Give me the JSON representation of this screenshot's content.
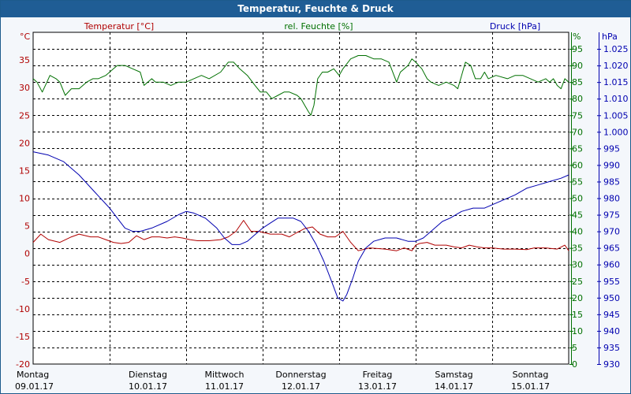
{
  "window": {
    "title": "Temperatur, Feuchte & Druck"
  },
  "colors": {
    "temperature": "#b00000",
    "humidity": "#007000",
    "pressure": "#0000b0",
    "title_bar": "#1f5d95",
    "grid": "#000000"
  },
  "chart_data": {
    "type": "line",
    "title": "Temperatur, Feuchte & Druck",
    "grid": true,
    "legend": "top",
    "axes": {
      "temperature": {
        "side": "left",
        "label": "Temperatur [°C]",
        "unit_label": "°C",
        "range": [
          -20,
          40
        ],
        "ticks": [
          -20,
          -15,
          -10,
          -5,
          0,
          5,
          10,
          15,
          20,
          25,
          30,
          35
        ],
        "tick_labels": [
          "-20",
          "-15",
          "-10",
          "-5",
          "0",
          "5",
          "10",
          "15",
          "20",
          "25",
          "30",
          "35"
        ]
      },
      "humidity": {
        "side": "right",
        "label": "rel. Feuchte [%]",
        "unit_label": "%",
        "range": [
          0,
          100
        ],
        "ticks": [
          0,
          5,
          10,
          15,
          20,
          25,
          30,
          35,
          40,
          45,
          50,
          55,
          60,
          65,
          70,
          75,
          80,
          85,
          90,
          95
        ],
        "tick_labels": [
          "0",
          "5",
          "10",
          "15",
          "20",
          "25",
          "30",
          "35",
          "40",
          "45",
          "50",
          "55",
          "60",
          "65",
          "70",
          "75",
          "80",
          "85",
          "90",
          "95"
        ]
      },
      "pressure": {
        "side": "right",
        "label": "Druck [hPa]",
        "unit_label": "hPa",
        "range": [
          930,
          1030
        ],
        "ticks": [
          930,
          935,
          940,
          945,
          950,
          955,
          960,
          965,
          970,
          975,
          980,
          985,
          990,
          995,
          1000,
          1005,
          1010,
          1015,
          1020,
          1025
        ],
        "tick_labels": [
          "930",
          "935",
          "940",
          "945",
          "950",
          "955",
          "960",
          "965",
          "970",
          "975",
          "980",
          "985",
          "990",
          "995",
          "1.000",
          "1.005",
          "1.010",
          "1.015",
          "1.020",
          "1.025"
        ]
      }
    },
    "x": {
      "unit": "day",
      "range": [
        0,
        7
      ],
      "days": [
        {
          "pos": 0,
          "name": "Montag",
          "date": "09.01.17"
        },
        {
          "pos": 1,
          "name": "Dienstag",
          "date": "10.01.17"
        },
        {
          "pos": 2,
          "name": "Mittwoch",
          "date": "11.01.17"
        },
        {
          "pos": 3,
          "name": "Donnerstag",
          "date": "12.01.17"
        },
        {
          "pos": 4,
          "name": "Freitag",
          "date": "13.01.17"
        },
        {
          "pos": 5,
          "name": "Samstag",
          "date": "14.01.17"
        },
        {
          "pos": 6,
          "name": "Sonntag",
          "date": "15.01.17"
        }
      ]
    },
    "series": [
      {
        "name": "Temperatur [°C]",
        "axis": "temperature",
        "color": "#b00000",
        "points": [
          [
            0,
            2.0
          ],
          [
            0.1,
            3.5
          ],
          [
            0.2,
            2.5
          ],
          [
            0.35,
            2.0
          ],
          [
            0.5,
            3.0
          ],
          [
            0.6,
            3.5
          ],
          [
            0.75,
            3.0
          ],
          [
            0.85,
            3.0
          ],
          [
            0.95,
            2.5
          ],
          [
            1.05,
            2.0
          ],
          [
            1.15,
            1.8
          ],
          [
            1.25,
            2.0
          ],
          [
            1.35,
            3.2
          ],
          [
            1.45,
            2.5
          ],
          [
            1.55,
            3.0
          ],
          [
            1.65,
            3.0
          ],
          [
            1.75,
            2.8
          ],
          [
            1.85,
            3.0
          ],
          [
            1.95,
            2.8
          ],
          [
            2.05,
            2.5
          ],
          [
            2.15,
            2.3
          ],
          [
            2.3,
            2.3
          ],
          [
            2.45,
            2.5
          ],
          [
            2.55,
            3.0
          ],
          [
            2.65,
            4.0
          ],
          [
            2.75,
            6.0
          ],
          [
            2.85,
            4.0
          ],
          [
            2.95,
            4.0
          ],
          [
            3.1,
            3.5
          ],
          [
            3.25,
            3.5
          ],
          [
            3.35,
            3.0
          ],
          [
            3.45,
            3.8
          ],
          [
            3.55,
            4.5
          ],
          [
            3.65,
            4.8
          ],
          [
            3.75,
            3.5
          ],
          [
            3.85,
            3.0
          ],
          [
            3.95,
            3.0
          ],
          [
            4.05,
            4.0
          ],
          [
            4.15,
            2.0
          ],
          [
            4.25,
            0.5
          ],
          [
            4.4,
            1.0
          ],
          [
            4.6,
            0.8
          ],
          [
            4.75,
            0.5
          ],
          [
            4.85,
            1.0
          ],
          [
            4.95,
            0.5
          ],
          [
            5.0,
            1.5
          ],
          [
            5.05,
            1.8
          ],
          [
            5.15,
            2.0
          ],
          [
            5.25,
            1.5
          ],
          [
            5.4,
            1.5
          ],
          [
            5.5,
            1.2
          ],
          [
            5.6,
            1.0
          ],
          [
            5.7,
            1.5
          ],
          [
            5.8,
            1.2
          ],
          [
            5.9,
            1.0
          ],
          [
            6.0,
            1.0
          ],
          [
            6.15,
            0.8
          ],
          [
            6.3,
            0.8
          ],
          [
            6.45,
            0.7
          ],
          [
            6.55,
            1.0
          ],
          [
            6.7,
            1.0
          ],
          [
            6.85,
            0.8
          ],
          [
            6.95,
            1.5
          ],
          [
            7.0,
            0.5
          ]
        ]
      },
      {
        "name": "rel. Feuchte [%]",
        "axis": "humidity",
        "color": "#007000",
        "points": [
          [
            0,
            86
          ],
          [
            0.05,
            85
          ],
          [
            0.12,
            82
          ],
          [
            0.18,
            85
          ],
          [
            0.22,
            87
          ],
          [
            0.3,
            86
          ],
          [
            0.35,
            85
          ],
          [
            0.42,
            81
          ],
          [
            0.5,
            83
          ],
          [
            0.6,
            83
          ],
          [
            0.7,
            85
          ],
          [
            0.78,
            86
          ],
          [
            0.85,
            86
          ],
          [
            0.95,
            87
          ],
          [
            1.0,
            88
          ],
          [
            1.05,
            89
          ],
          [
            1.1,
            90
          ],
          [
            1.2,
            90
          ],
          [
            1.3,
            89
          ],
          [
            1.4,
            88
          ],
          [
            1.45,
            84
          ],
          [
            1.55,
            86
          ],
          [
            1.6,
            85
          ],
          [
            1.7,
            85
          ],
          [
            1.8,
            84
          ],
          [
            1.9,
            85
          ],
          [
            2.0,
            85
          ],
          [
            2.1,
            86
          ],
          [
            2.2,
            87
          ],
          [
            2.3,
            86
          ],
          [
            2.45,
            88
          ],
          [
            2.55,
            91
          ],
          [
            2.62,
            91
          ],
          [
            2.7,
            89
          ],
          [
            2.8,
            87
          ],
          [
            2.9,
            84
          ],
          [
            2.97,
            82
          ],
          [
            3.05,
            82
          ],
          [
            3.12,
            80
          ],
          [
            3.2,
            81
          ],
          [
            3.28,
            82
          ],
          [
            3.35,
            82
          ],
          [
            3.45,
            81
          ],
          [
            3.5,
            80
          ],
          [
            3.55,
            78
          ],
          [
            3.6,
            76
          ],
          [
            3.63,
            75
          ],
          [
            3.67,
            78
          ],
          [
            3.72,
            86
          ],
          [
            3.78,
            88
          ],
          [
            3.85,
            88
          ],
          [
            3.93,
            89
          ],
          [
            4.0,
            87
          ],
          [
            4.05,
            89
          ],
          [
            4.15,
            92
          ],
          [
            4.25,
            93
          ],
          [
            4.35,
            93
          ],
          [
            4.45,
            92
          ],
          [
            4.55,
            92
          ],
          [
            4.65,
            91
          ],
          [
            4.75,
            85
          ],
          [
            4.8,
            88
          ],
          [
            4.9,
            90
          ],
          [
            4.95,
            92
          ],
          [
            5.0,
            91
          ],
          [
            5.08,
            89
          ],
          [
            5.15,
            86
          ],
          [
            5.2,
            85
          ],
          [
            5.3,
            84
          ],
          [
            5.4,
            85
          ],
          [
            5.5,
            84
          ],
          [
            5.55,
            83
          ],
          [
            5.65,
            91
          ],
          [
            5.72,
            90
          ],
          [
            5.78,
            86
          ],
          [
            5.85,
            86
          ],
          [
            5.9,
            88
          ],
          [
            5.95,
            86
          ],
          [
            6.05,
            87
          ],
          [
            6.2,
            86
          ],
          [
            6.3,
            87
          ],
          [
            6.4,
            87
          ],
          [
            6.5,
            86
          ],
          [
            6.6,
            85
          ],
          [
            6.7,
            86
          ],
          [
            6.75,
            85
          ],
          [
            6.8,
            86
          ],
          [
            6.85,
            84
          ],
          [
            6.9,
            83
          ],
          [
            6.95,
            86
          ],
          [
            7.0,
            85
          ]
        ]
      },
      {
        "name": "Druck [hPa]",
        "axis": "pressure",
        "color": "#0000b0",
        "points": [
          [
            0,
            994
          ],
          [
            0.2,
            993
          ],
          [
            0.4,
            991
          ],
          [
            0.6,
            987
          ],
          [
            0.8,
            982
          ],
          [
            1.0,
            977
          ],
          [
            1.1,
            974
          ],
          [
            1.2,
            971
          ],
          [
            1.3,
            970
          ],
          [
            1.4,
            970
          ],
          [
            1.55,
            971
          ],
          [
            1.75,
            973
          ],
          [
            1.9,
            975
          ],
          [
            2.0,
            976
          ],
          [
            2.1,
            975.5
          ],
          [
            2.25,
            974
          ],
          [
            2.4,
            971
          ],
          [
            2.5,
            968
          ],
          [
            2.6,
            966
          ],
          [
            2.7,
            966
          ],
          [
            2.8,
            967
          ],
          [
            2.9,
            969
          ],
          [
            3.0,
            971
          ],
          [
            3.1,
            972.5
          ],
          [
            3.2,
            974
          ],
          [
            3.3,
            974
          ],
          [
            3.4,
            974
          ],
          [
            3.5,
            973
          ],
          [
            3.6,
            970
          ],
          [
            3.7,
            966
          ],
          [
            3.8,
            961
          ],
          [
            3.9,
            955
          ],
          [
            3.98,
            950
          ],
          [
            4.05,
            949
          ],
          [
            4.1,
            951
          ],
          [
            4.18,
            956
          ],
          [
            4.25,
            961
          ],
          [
            4.35,
            965
          ],
          [
            4.45,
            967
          ],
          [
            4.6,
            968
          ],
          [
            4.75,
            968
          ],
          [
            4.9,
            967
          ],
          [
            5.0,
            967
          ],
          [
            5.1,
            968
          ],
          [
            5.2,
            970
          ],
          [
            5.35,
            973
          ],
          [
            5.45,
            974
          ],
          [
            5.6,
            976
          ],
          [
            5.75,
            977
          ],
          [
            5.9,
            977
          ],
          [
            6.1,
            979
          ],
          [
            6.3,
            981
          ],
          [
            6.45,
            983
          ],
          [
            6.6,
            984
          ],
          [
            6.75,
            985
          ],
          [
            6.9,
            986
          ],
          [
            7.0,
            987
          ]
        ]
      }
    ]
  }
}
